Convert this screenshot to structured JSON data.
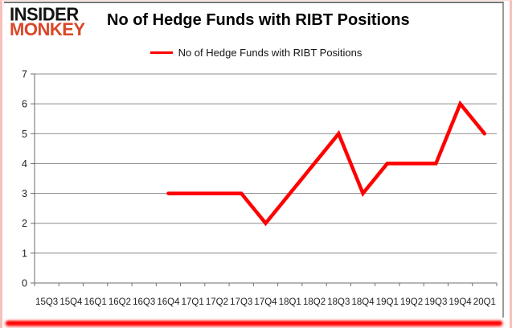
{
  "brand": {
    "line1": "INSIDER",
    "line2": "MONKEY",
    "line1_color": "#141414",
    "line2_color": "#da4729"
  },
  "header": {
    "title": "No of Hedge Funds with RIBT Positions"
  },
  "legend": {
    "label": "No of Hedge Funds with RIBT Positions",
    "swatch_color": "#fe0000"
  },
  "chart_data": {
    "type": "line",
    "title": "No of Hedge Funds with RIBT Positions",
    "categories": [
      "15Q3",
      "15Q4",
      "16Q1",
      "16Q2",
      "16Q3",
      "16Q4",
      "17Q1",
      "17Q2",
      "17Q3",
      "17Q4",
      "18Q1",
      "18Q2",
      "18Q3",
      "18Q4",
      "19Q1",
      "19Q2",
      "19Q3",
      "19Q4",
      "20Q1"
    ],
    "series": [
      {
        "name": "No of Hedge Funds with RIBT Positions",
        "color": "#fe0000",
        "values": [
          null,
          null,
          null,
          null,
          null,
          3,
          3,
          3,
          3,
          2,
          3,
          4,
          5,
          3,
          4,
          4,
          4,
          6,
          5
        ]
      }
    ],
    "ylim": [
      0,
      7
    ],
    "yticks": [
      0,
      1,
      2,
      3,
      4,
      5,
      6,
      7
    ],
    "xlabel": "",
    "ylabel": "",
    "grid": true,
    "legend_position": "top-center",
    "colors": {
      "grid": "#8c8c8c",
      "axis": "#6e6e6e",
      "tick_text": "#1f1f1f"
    }
  }
}
